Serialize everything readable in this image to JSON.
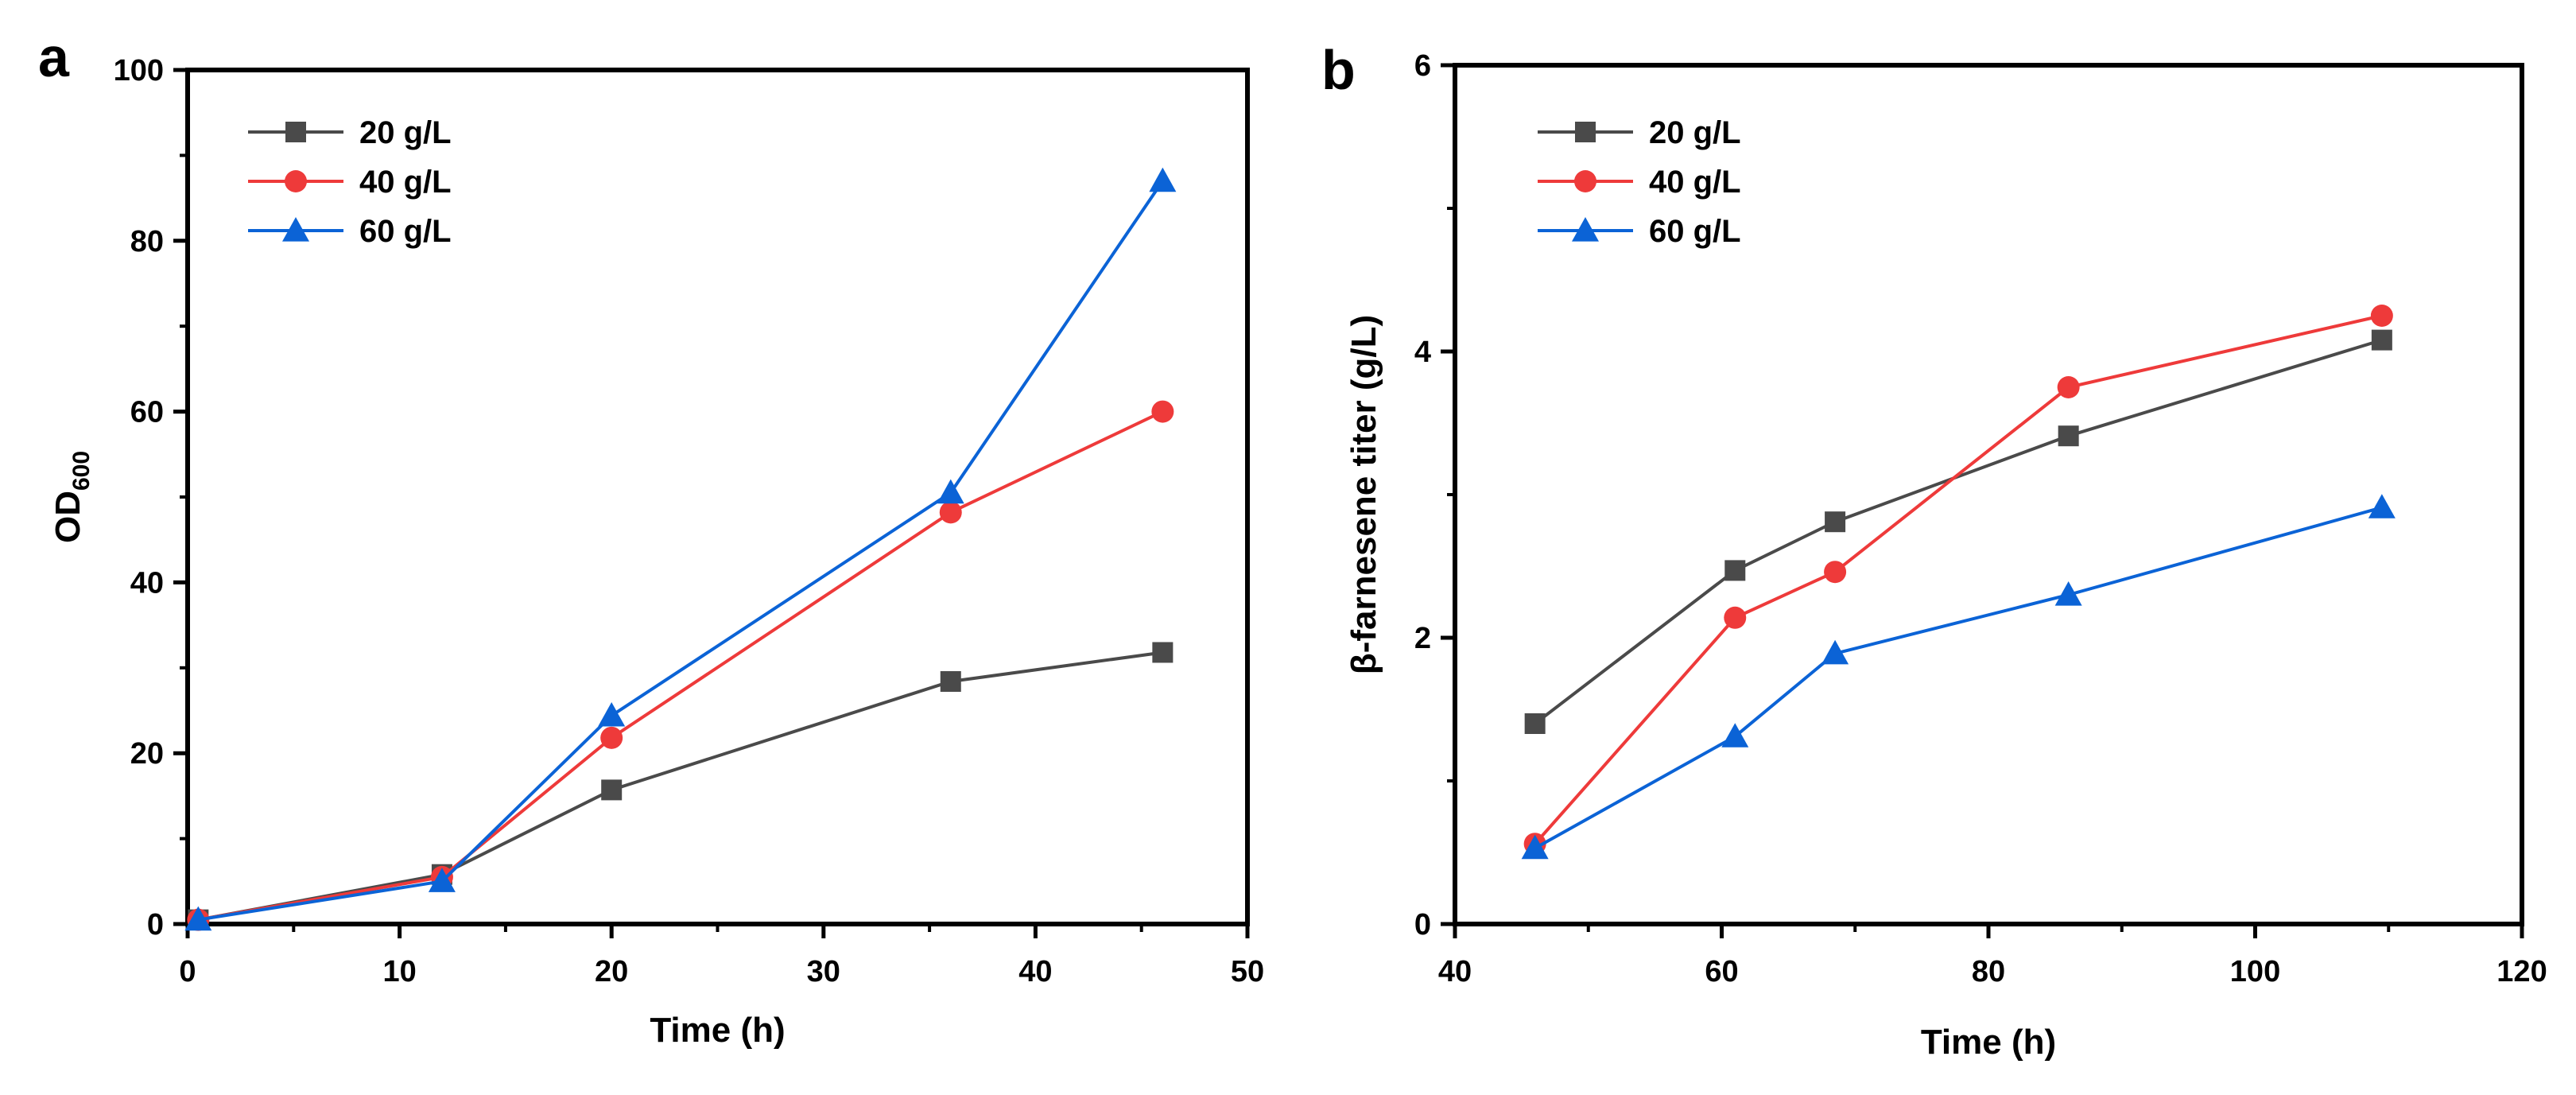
{
  "chart_data": [
    {
      "panel_label": "a",
      "type": "line",
      "xlabel": "Time (h)",
      "ylabel_main": "OD",
      "ylabel_sub": "600",
      "xlim": [
        0,
        50
      ],
      "ylim": [
        0,
        100
      ],
      "xticks": [
        0,
        10,
        20,
        30,
        40,
        50
      ],
      "yticks": [
        0,
        20,
        40,
        60,
        80,
        100
      ],
      "grid": false,
      "legend_position": "top-left",
      "series": [
        {
          "name": "20 g/L",
          "color": "#4a4a4a",
          "marker": "square",
          "x": [
            0.5,
            12,
            20,
            36,
            46
          ],
          "y": [
            0.5,
            5.8,
            15.7,
            28.4,
            31.8
          ]
        },
        {
          "name": "40 g/L",
          "color": "#ee3a3a",
          "marker": "circle",
          "x": [
            0.5,
            12,
            20,
            36,
            46
          ],
          "y": [
            0.5,
            5.5,
            21.8,
            48.2,
            60.0
          ]
        },
        {
          "name": "60 g/L",
          "color": "#0b63d6",
          "marker": "triangle",
          "x": [
            0.5,
            12,
            20,
            36,
            46
          ],
          "y": [
            0.5,
            5.0,
            24.4,
            50.5,
            87.0
          ]
        }
      ]
    },
    {
      "panel_label": "b",
      "type": "line",
      "xlabel": "Time (h)",
      "ylabel_main": "β-farnesene titer (g/L)",
      "ylabel_sub": "",
      "xlim": [
        40,
        120
      ],
      "ylim": [
        0,
        6
      ],
      "xticks": [
        40,
        60,
        80,
        100,
        120
      ],
      "yticks": [
        0,
        2,
        4,
        6
      ],
      "grid": false,
      "legend_position": "top-left",
      "series": [
        {
          "name": "20 g/L",
          "color": "#4a4a4a",
          "marker": "square",
          "x": [
            46,
            61,
            68.5,
            86,
            109.5
          ],
          "y": [
            1.4,
            2.47,
            2.81,
            3.41,
            4.08
          ]
        },
        {
          "name": "40 g/L",
          "color": "#ee3a3a",
          "marker": "circle",
          "x": [
            46,
            61,
            68.5,
            86,
            109.5
          ],
          "y": [
            0.56,
            2.14,
            2.46,
            3.75,
            4.25
          ]
        },
        {
          "name": "60 g/L",
          "color": "#0b63d6",
          "marker": "triangle",
          "x": [
            46,
            61,
            68.5,
            86,
            109.5
          ],
          "y": [
            0.53,
            1.31,
            1.89,
            2.3,
            2.91
          ]
        }
      ]
    }
  ]
}
